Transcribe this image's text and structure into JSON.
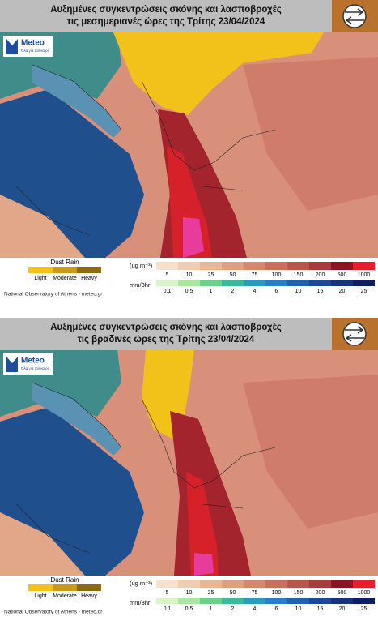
{
  "panels": [
    {
      "title_lines": [
        "Αυξημένες συγκεντρώσεις σκόνης και λασποβροχές",
        "τις μεσημεριανές ώρες της Τρίτης 23/04/2024"
      ]
    },
    {
      "title_lines": [
        "Αυξημένες συγκεντρώσεις σκόνης και λασποβροχές",
        "τις βραδινές ώρες της Τρίτης 23/04/2024"
      ]
    }
  ],
  "logo": {
    "name": "Meteo",
    "tagline": "Όλα για τον καιρό"
  },
  "legend": {
    "dust_rain_title": "Dust Rain",
    "dust_rain_levels": [
      "Light",
      "Moderate",
      "Heavy"
    ],
    "concentration_unit": "(ug m⁻³)",
    "concentration_levels": [
      5,
      10,
      25,
      50,
      75,
      100,
      150,
      200,
      500,
      1000
    ],
    "rain_unit": "mm/3hr",
    "rain_levels": [
      0.1,
      0.5,
      1,
      2,
      4,
      6,
      10,
      15,
      20,
      25
    ]
  },
  "footer": "National Observatory of Athens - meteo.gr"
}
